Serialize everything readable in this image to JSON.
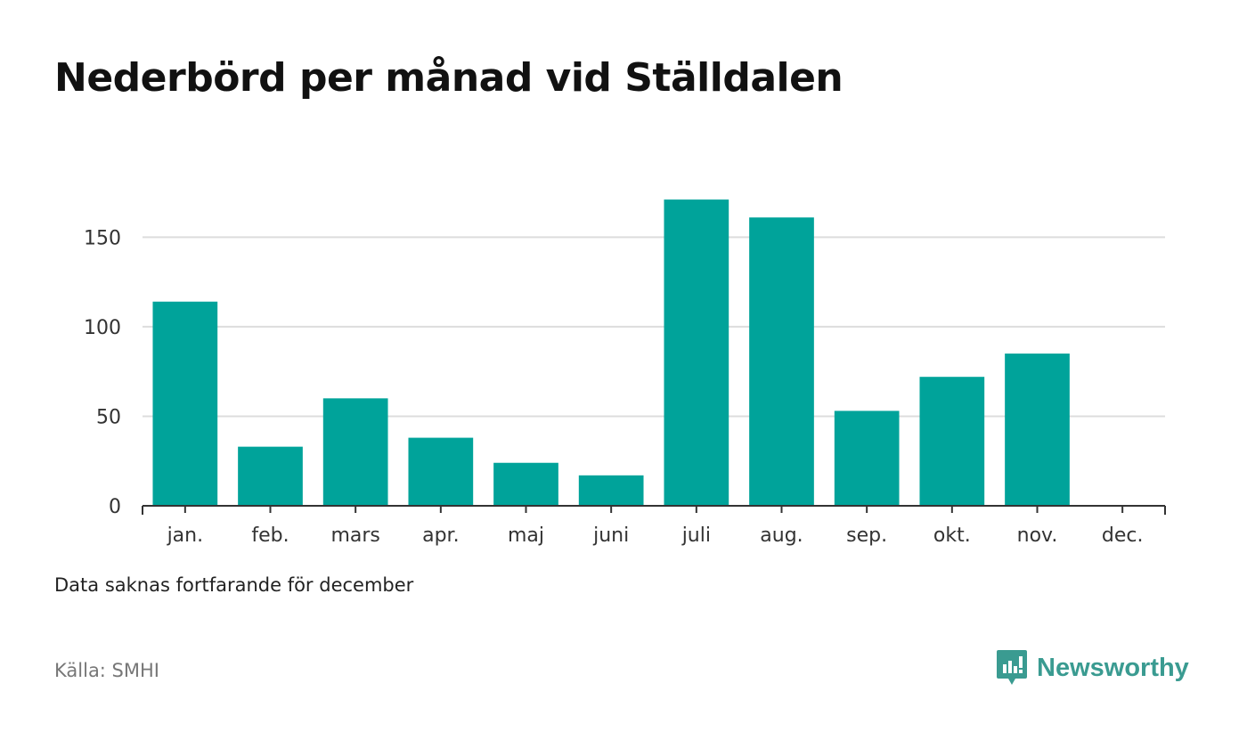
{
  "title": "Nederbörd per månad vid Ställdalen",
  "note": "Data saknas fortfarande för december",
  "source": "Källa: SMHI",
  "brand": {
    "name": "Newsworthy",
    "icon": "newsworthy-logo-icon",
    "color": "#3a9b91"
  },
  "colors": {
    "bar": "#00a39a",
    "grid": "#dddddd",
    "axis": "#333333",
    "tick_text": "#333333"
  },
  "chart_data": {
    "type": "bar",
    "title": "Nederbörd per månad vid Ställdalen",
    "categories": [
      "jan.",
      "feb.",
      "mars",
      "apr.",
      "maj",
      "juni",
      "juli",
      "aug.",
      "sep.",
      "okt.",
      "nov.",
      "dec."
    ],
    "values": [
      114,
      33,
      60,
      38,
      24,
      17,
      171,
      161,
      53,
      72,
      85,
      null
    ],
    "ylim": [
      0,
      180
    ],
    "yticks": [
      0,
      50,
      100,
      150
    ],
    "grid": true,
    "xlabel": "",
    "ylabel": ""
  }
}
